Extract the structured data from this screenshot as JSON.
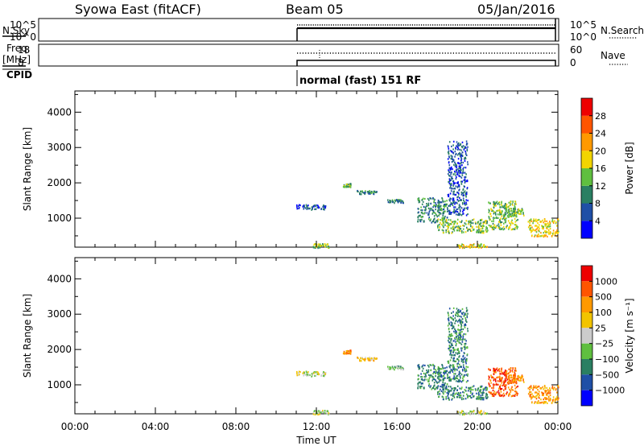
{
  "header": {
    "station": "Syowa East (fitACF)",
    "beam": "Beam 05",
    "date": "05/Jan/2016"
  },
  "status_panels": {
    "nsky_label": "N.Sky",
    "nsky_ticks": [
      "10^5",
      "10^0"
    ],
    "nsearch_label": "N.Search",
    "nsearch_ticks": [
      "10^5",
      "10^0"
    ],
    "freq_label": "Freq.",
    "freq_unit": "[MHz]",
    "freq_ticks": [
      "18",
      "8"
    ],
    "nave_label": "Nave",
    "nave_ticks": [
      "60",
      "0"
    ],
    "cpid_label": "CPID",
    "cpid_text": "normal (fast) 151 RF"
  },
  "colors": {
    "power": [
      "#0000ff",
      "#1f4fa6",
      "#2a7f62",
      "#5fbf3f",
      "#f2d400",
      "#ff9900",
      "#ff5500",
      "#ee0000"
    ],
    "velocity": [
      "#ee0000",
      "#ff5500",
      "#ff9900",
      "#f2c400",
      "#cccccc",
      "#5fbf3f",
      "#2a7f62",
      "#1f4fa6",
      "#0000ff"
    ]
  },
  "chart_data": [
    {
      "type": "heatmap",
      "panel": "power",
      "ylabel": "Slant Range [km]",
      "ylim": [
        180,
        4600
      ],
      "yticks": [
        1000,
        2000,
        3000,
        4000
      ],
      "colorbar_label": "Power [dB]",
      "colorbar_ticks": [
        "4",
        "8",
        "12",
        "16",
        "20",
        "24",
        "28"
      ],
      "colorbar_range": [
        0,
        32
      ],
      "echo_regions": [
        {
          "t0": 11.0,
          "t1": 12.5,
          "r0": 1260,
          "r1": 1400,
          "level": 1
        },
        {
          "t0": 11.8,
          "t1": 12.6,
          "r0": 180,
          "r1": 300,
          "level": 3
        },
        {
          "t0": 13.3,
          "t1": 13.7,
          "r0": 1900,
          "r1": 2000,
          "level": 3
        },
        {
          "t0": 14.0,
          "t1": 15.0,
          "r0": 1700,
          "r1": 1800,
          "level": 2
        },
        {
          "t0": 15.5,
          "t1": 16.3,
          "r0": 1450,
          "r1": 1550,
          "level": 2
        },
        {
          "t0": 17.0,
          "t1": 18.5,
          "r0": 900,
          "r1": 1600,
          "level": 2
        },
        {
          "t0": 18.0,
          "t1": 20.5,
          "r0": 600,
          "r1": 1000,
          "level": 3
        },
        {
          "t0": 18.5,
          "t1": 19.5,
          "r0": 1100,
          "r1": 3200,
          "level": 1
        },
        {
          "t0": 19.0,
          "t1": 20.5,
          "r0": 180,
          "r1": 300,
          "level": 4
        },
        {
          "t0": 20.5,
          "t1": 22.0,
          "r0": 700,
          "r1": 1500,
          "level": 3
        },
        {
          "t0": 21.5,
          "t1": 22.3,
          "r0": 1100,
          "r1": 1300,
          "level": 3
        },
        {
          "t0": 22.5,
          "t1": 24.0,
          "r0": 500,
          "r1": 1000,
          "level": 4
        }
      ]
    },
    {
      "type": "heatmap",
      "panel": "velocity",
      "xlabel": "Time UT",
      "ylabel": "Slant Range [km]",
      "xlim": [
        0,
        24
      ],
      "xticks": [
        "00:00",
        "04:00",
        "08:00",
        "12:00",
        "16:00",
        "20:00",
        "00:00"
      ],
      "ylim": [
        180,
        4600
      ],
      "yticks": [
        1000,
        2000,
        3000,
        4000
      ],
      "colorbar_label": "Velocity [m s⁻¹]",
      "colorbar_ticks": [
        "1000",
        "500",
        "100",
        "25",
        "−25",
        "−100",
        "−500",
        "−1000"
      ],
      "echo_regions": [
        {
          "t0": 11.0,
          "t1": 12.5,
          "r0": 1260,
          "r1": 1400,
          "level": 4
        },
        {
          "t0": 11.8,
          "t1": 12.6,
          "r0": 180,
          "r1": 300,
          "level": 4
        },
        {
          "t0": 13.3,
          "t1": 13.7,
          "r0": 1900,
          "r1": 2000,
          "level": 2
        },
        {
          "t0": 14.0,
          "t1": 15.0,
          "r0": 1700,
          "r1": 1800,
          "level": 3
        },
        {
          "t0": 15.5,
          "t1": 16.3,
          "r0": 1450,
          "r1": 1550,
          "level": 5
        },
        {
          "t0": 17.0,
          "t1": 18.5,
          "r0": 900,
          "r1": 1600,
          "level": 6
        },
        {
          "t0": 18.0,
          "t1": 20.5,
          "r0": 600,
          "r1": 1000,
          "level": 6
        },
        {
          "t0": 18.5,
          "t1": 19.5,
          "r0": 1100,
          "r1": 3200,
          "level": 6
        },
        {
          "t0": 19.0,
          "t1": 20.5,
          "r0": 180,
          "r1": 300,
          "level": 4
        },
        {
          "t0": 20.5,
          "t1": 22.0,
          "r0": 700,
          "r1": 1500,
          "level": 1
        },
        {
          "t0": 21.5,
          "t1": 22.3,
          "r0": 1100,
          "r1": 1300,
          "level": 2
        },
        {
          "t0": 22.5,
          "t1": 24.0,
          "r0": 500,
          "r1": 1000,
          "level": 2
        }
      ]
    }
  ]
}
